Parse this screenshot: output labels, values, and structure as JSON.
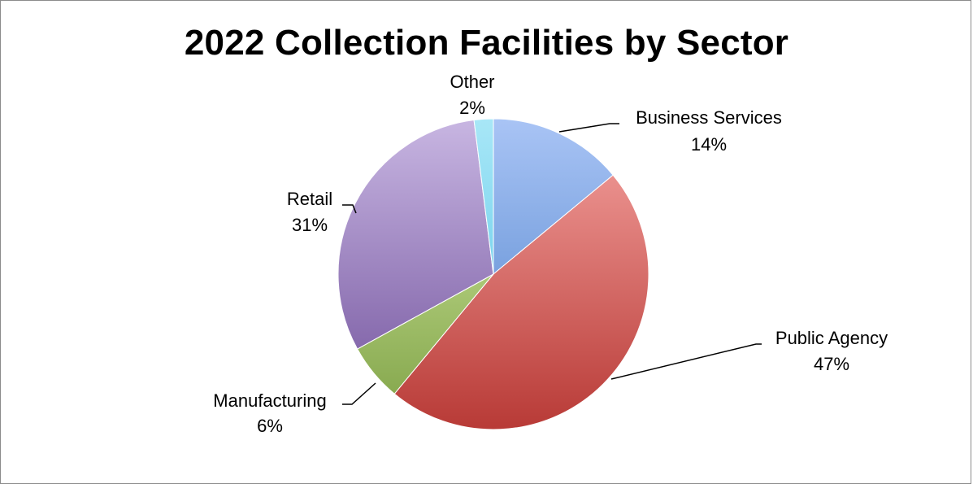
{
  "chart_data": {
    "type": "pie",
    "title": "2022 Collection Facilities by Sector",
    "slices": [
      {
        "label": "Business Services",
        "value": 14,
        "value_label": "14%",
        "color_light": "#a9c4f5",
        "color_dark": "#4a7fc9"
      },
      {
        "label": "Public Agency",
        "value": 47,
        "value_label": "47%",
        "color_light": "#f5a3a0",
        "color_dark": "#b83a36"
      },
      {
        "label": "Manufacturing",
        "value": 6,
        "value_label": "6%",
        "color_light": "#d9f0a8",
        "color_dark": "#7ea145"
      },
      {
        "label": "Retail",
        "value": 31,
        "value_label": "31%",
        "color_light": "#c8b6e2",
        "color_dark": "#6f4f9a"
      },
      {
        "label": "Other",
        "value": 2,
        "value_label": "2%",
        "color_light": "#a8e7f7",
        "color_dark": "#4fc1e4"
      }
    ],
    "start_angle_deg": 0,
    "direction": "clockwise",
    "legend": "none",
    "data_labels": "outside with leader lines"
  }
}
